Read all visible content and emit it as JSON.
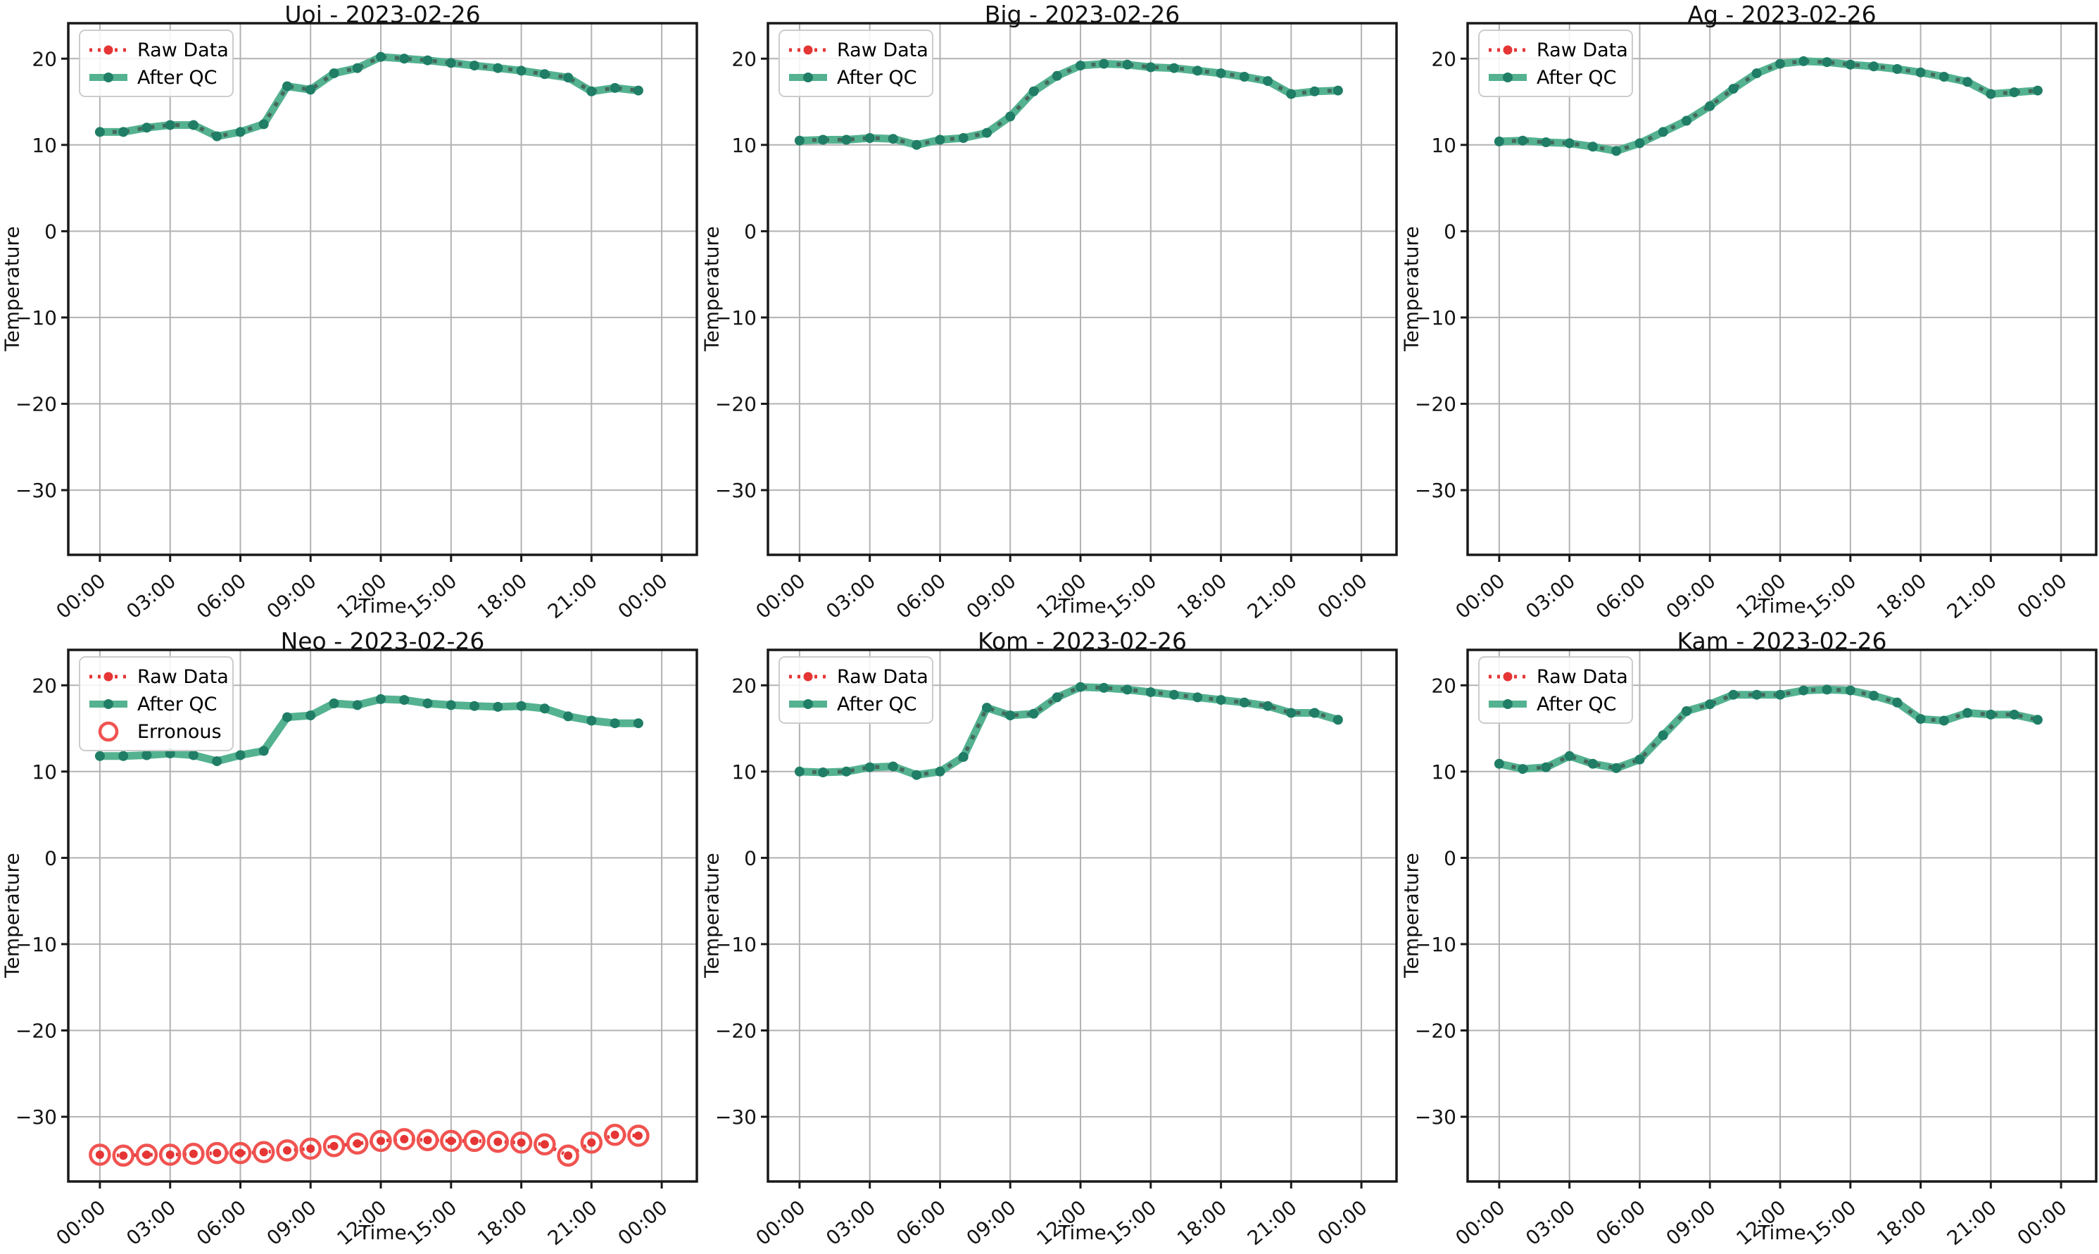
{
  "figure": {
    "date": "2023-02-26",
    "stations": [
      "Uoi",
      "Big",
      "Ag",
      "Neo",
      "Kom",
      "Kam"
    ],
    "legend_labels": {
      "raw": "Raw Data",
      "qc": "After QC",
      "erroneous": "Erronous"
    },
    "colors": {
      "qc_line": "#54b290",
      "qc_marker": "#207d66",
      "qc_dash_overlay": "#45695e",
      "raw": "#e53535",
      "erroneous_circle": "#f05350",
      "grid": "#b2b2b2",
      "spine": "#191919",
      "text": "#151515",
      "legend_border": "#cccccc",
      "background": "#ffffff"
    }
  },
  "chart_data": [
    {
      "type": "line",
      "station": "Uoi",
      "title": "Uoi - 2023-02-26",
      "xlabel": "Time",
      "ylabel": "Temperature",
      "grid": true,
      "legend_position": "upper-left",
      "xlim": [
        -1.35,
        25.5
      ],
      "ylim": [
        -37.5,
        24.1
      ],
      "x_ticks": [
        {
          "hour": 0,
          "label": "00:00"
        },
        {
          "hour": 3,
          "label": "03:00"
        },
        {
          "hour": 6,
          "label": "06:00"
        },
        {
          "hour": 9,
          "label": "09:00"
        },
        {
          "hour": 12,
          "label": "12:00"
        },
        {
          "hour": 15,
          "label": "15:00"
        },
        {
          "hour": 18,
          "label": "18:00"
        },
        {
          "hour": 21,
          "label": "21:00"
        },
        {
          "hour": 24,
          "label": "00:00"
        }
      ],
      "y_ticks": [
        {
          "value": 20,
          "label": "20"
        },
        {
          "value": 10,
          "label": "10"
        },
        {
          "value": 0,
          "label": "0"
        },
        {
          "value": -10,
          "label": "−10"
        },
        {
          "value": -20,
          "label": "−20"
        },
        {
          "value": -30,
          "label": "−30"
        }
      ],
      "legend": [
        {
          "label": "Raw Data",
          "type": "raw"
        },
        {
          "label": "After QC",
          "type": "qc"
        }
      ],
      "overlay_dashes": true,
      "x_hours": [
        0,
        1,
        2,
        3,
        4,
        5,
        6,
        7,
        8,
        9,
        10,
        11,
        12,
        13,
        14,
        15,
        16,
        17,
        18,
        19,
        20,
        21,
        22,
        23
      ],
      "series": [
        {
          "name": "After QC",
          "type": "qc",
          "values": [
            11.5,
            11.5,
            12.0,
            12.3,
            12.3,
            11.0,
            11.5,
            12.4,
            16.8,
            16.4,
            18.3,
            18.9,
            20.2,
            20.0,
            19.8,
            19.5,
            19.2,
            18.9,
            18.6,
            18.2,
            17.8,
            16.2,
            16.6,
            16.3
          ]
        }
      ]
    },
    {
      "type": "line",
      "station": "Big",
      "title": "Big - 2023-02-26",
      "xlabel": "Time",
      "ylabel": "Temperature",
      "grid": true,
      "legend_position": "upper-left",
      "xlim": [
        -1.35,
        25.5
      ],
      "ylim": [
        -37.5,
        24.1
      ],
      "x_ticks": [
        {
          "hour": 0,
          "label": "00:00"
        },
        {
          "hour": 3,
          "label": "03:00"
        },
        {
          "hour": 6,
          "label": "06:00"
        },
        {
          "hour": 9,
          "label": "09:00"
        },
        {
          "hour": 12,
          "label": "12:00"
        },
        {
          "hour": 15,
          "label": "15:00"
        },
        {
          "hour": 18,
          "label": "18:00"
        },
        {
          "hour": 21,
          "label": "21:00"
        },
        {
          "hour": 24,
          "label": "00:00"
        }
      ],
      "y_ticks": [
        {
          "value": 20,
          "label": "20"
        },
        {
          "value": 10,
          "label": "10"
        },
        {
          "value": 0,
          "label": "0"
        },
        {
          "value": -10,
          "label": "−10"
        },
        {
          "value": -20,
          "label": "−20"
        },
        {
          "value": -30,
          "label": "−30"
        }
      ],
      "legend": [
        {
          "label": "Raw Data",
          "type": "raw"
        },
        {
          "label": "After QC",
          "type": "qc"
        }
      ],
      "overlay_dashes": true,
      "x_hours": [
        0,
        1,
        2,
        3,
        4,
        5,
        6,
        7,
        8,
        9,
        10,
        11,
        12,
        13,
        14,
        15,
        16,
        17,
        18,
        19,
        20,
        21,
        22,
        23
      ],
      "series": [
        {
          "name": "After QC",
          "type": "qc",
          "values": [
            10.5,
            10.6,
            10.6,
            10.8,
            10.7,
            10.0,
            10.6,
            10.8,
            11.4,
            13.3,
            16.2,
            18.0,
            19.2,
            19.4,
            19.3,
            19.0,
            18.9,
            18.6,
            18.3,
            17.9,
            17.4,
            15.9,
            16.2,
            16.3
          ]
        }
      ]
    },
    {
      "type": "line",
      "station": "Ag",
      "title": "Ag - 2023-02-26",
      "xlabel": "Time",
      "ylabel": "Temperature",
      "grid": true,
      "legend_position": "upper-left",
      "xlim": [
        -1.35,
        25.5
      ],
      "ylim": [
        -37.5,
        24.1
      ],
      "x_ticks": [
        {
          "hour": 0,
          "label": "00:00"
        },
        {
          "hour": 3,
          "label": "03:00"
        },
        {
          "hour": 6,
          "label": "06:00"
        },
        {
          "hour": 9,
          "label": "09:00"
        },
        {
          "hour": 12,
          "label": "12:00"
        },
        {
          "hour": 15,
          "label": "15:00"
        },
        {
          "hour": 18,
          "label": "18:00"
        },
        {
          "hour": 21,
          "label": "21:00"
        },
        {
          "hour": 24,
          "label": "00:00"
        }
      ],
      "y_ticks": [
        {
          "value": 20,
          "label": "20"
        },
        {
          "value": 10,
          "label": "10"
        },
        {
          "value": 0,
          "label": "0"
        },
        {
          "value": -10,
          "label": "−10"
        },
        {
          "value": -20,
          "label": "−20"
        },
        {
          "value": -30,
          "label": "−30"
        }
      ],
      "legend": [
        {
          "label": "Raw Data",
          "type": "raw"
        },
        {
          "label": "After QC",
          "type": "qc"
        }
      ],
      "overlay_dashes": true,
      "x_hours": [
        0,
        1,
        2,
        3,
        4,
        5,
        6,
        7,
        8,
        9,
        10,
        11,
        12,
        13,
        14,
        15,
        16,
        17,
        18,
        19,
        20,
        21,
        22,
        23
      ],
      "series": [
        {
          "name": "After QC",
          "type": "qc",
          "values": [
            10.4,
            10.5,
            10.3,
            10.2,
            9.8,
            9.3,
            10.2,
            11.5,
            12.8,
            14.5,
            16.5,
            18.3,
            19.4,
            19.7,
            19.6,
            19.3,
            19.1,
            18.8,
            18.4,
            17.9,
            17.3,
            15.9,
            16.1,
            16.3
          ]
        }
      ]
    },
    {
      "type": "line",
      "station": "Neo",
      "title": "Neo - 2023-02-26",
      "xlabel": "Time",
      "ylabel": "Temperature",
      "grid": true,
      "legend_position": "upper-left",
      "xlim": [
        -1.35,
        25.5
      ],
      "ylim": [
        -37.5,
        24.1
      ],
      "x_ticks": [
        {
          "hour": 0,
          "label": "00:00"
        },
        {
          "hour": 3,
          "label": "03:00"
        },
        {
          "hour": 6,
          "label": "06:00"
        },
        {
          "hour": 9,
          "label": "09:00"
        },
        {
          "hour": 12,
          "label": "12:00"
        },
        {
          "hour": 15,
          "label": "15:00"
        },
        {
          "hour": 18,
          "label": "18:00"
        },
        {
          "hour": 21,
          "label": "21:00"
        },
        {
          "hour": 24,
          "label": "00:00"
        }
      ],
      "y_ticks": [
        {
          "value": 20,
          "label": "20"
        },
        {
          "value": 10,
          "label": "10"
        },
        {
          "value": 0,
          "label": "0"
        },
        {
          "value": -10,
          "label": "−10"
        },
        {
          "value": -20,
          "label": "−20"
        },
        {
          "value": -30,
          "label": "−30"
        }
      ],
      "legend": [
        {
          "label": "Raw Data",
          "type": "raw"
        },
        {
          "label": "After QC",
          "type": "qc"
        },
        {
          "label": "Erronous",
          "type": "erroneous"
        }
      ],
      "overlay_dashes": false,
      "x_hours": [
        0,
        1,
        2,
        3,
        4,
        5,
        6,
        7,
        8,
        9,
        10,
        11,
        12,
        13,
        14,
        15,
        16,
        17,
        18,
        19,
        20,
        21,
        22,
        23
      ],
      "series": [
        {
          "name": "Raw Data",
          "type": "raw",
          "erroneous": true,
          "values": [
            -34.4,
            -34.5,
            -34.4,
            -34.4,
            -34.3,
            -34.2,
            -34.2,
            -34.1,
            -33.9,
            -33.7,
            -33.4,
            -33.1,
            -32.8,
            -32.6,
            -32.7,
            -32.8,
            -32.8,
            -32.9,
            -33.0,
            -33.2,
            -34.5,
            -33.0,
            -32.1,
            -32.2
          ]
        },
        {
          "name": "After QC",
          "type": "qc",
          "values": [
            11.8,
            11.8,
            11.9,
            12.1,
            11.9,
            11.2,
            11.9,
            12.4,
            16.3,
            16.5,
            17.9,
            17.7,
            18.4,
            18.3,
            17.9,
            17.7,
            17.6,
            17.5,
            17.6,
            17.3,
            16.4,
            15.9,
            15.6,
            15.6
          ]
        }
      ]
    },
    {
      "type": "line",
      "station": "Kom",
      "title": "Kom - 2023-02-26",
      "xlabel": "Time",
      "ylabel": "Temperature",
      "grid": true,
      "legend_position": "upper-left",
      "xlim": [
        -1.35,
        25.5
      ],
      "ylim": [
        -37.5,
        24.1
      ],
      "x_ticks": [
        {
          "hour": 0,
          "label": "00:00"
        },
        {
          "hour": 3,
          "label": "03:00"
        },
        {
          "hour": 6,
          "label": "06:00"
        },
        {
          "hour": 9,
          "label": "09:00"
        },
        {
          "hour": 12,
          "label": "12:00"
        },
        {
          "hour": 15,
          "label": "15:00"
        },
        {
          "hour": 18,
          "label": "18:00"
        },
        {
          "hour": 21,
          "label": "21:00"
        },
        {
          "hour": 24,
          "label": "00:00"
        }
      ],
      "y_ticks": [
        {
          "value": 20,
          "label": "20"
        },
        {
          "value": 10,
          "label": "10"
        },
        {
          "value": 0,
          "label": "0"
        },
        {
          "value": -10,
          "label": "−10"
        },
        {
          "value": -20,
          "label": "−20"
        },
        {
          "value": -30,
          "label": "−30"
        }
      ],
      "legend": [
        {
          "label": "Raw Data",
          "type": "raw"
        },
        {
          "label": "After QC",
          "type": "qc"
        }
      ],
      "overlay_dashes": true,
      "x_hours": [
        0,
        1,
        2,
        3,
        4,
        5,
        6,
        7,
        8,
        9,
        10,
        11,
        12,
        13,
        14,
        15,
        16,
        17,
        18,
        19,
        20,
        21,
        22,
        23
      ],
      "series": [
        {
          "name": "After QC",
          "type": "qc",
          "values": [
            10.0,
            9.9,
            10.0,
            10.5,
            10.6,
            9.6,
            10.0,
            11.7,
            17.4,
            16.5,
            16.7,
            18.6,
            19.8,
            19.7,
            19.5,
            19.2,
            18.9,
            18.6,
            18.3,
            18.0,
            17.6,
            16.8,
            16.8,
            16.0
          ]
        }
      ]
    },
    {
      "type": "line",
      "station": "Kam",
      "title": "Kam - 2023-02-26",
      "xlabel": "Time",
      "ylabel": "Temperature",
      "grid": true,
      "legend_position": "upper-left",
      "xlim": [
        -1.35,
        25.5
      ],
      "ylim": [
        -37.5,
        24.1
      ],
      "x_ticks": [
        {
          "hour": 0,
          "label": "00:00"
        },
        {
          "hour": 3,
          "label": "03:00"
        },
        {
          "hour": 6,
          "label": "06:00"
        },
        {
          "hour": 9,
          "label": "09:00"
        },
        {
          "hour": 12,
          "label": "12:00"
        },
        {
          "hour": 15,
          "label": "15:00"
        },
        {
          "hour": 18,
          "label": "18:00"
        },
        {
          "hour": 21,
          "label": "21:00"
        },
        {
          "hour": 24,
          "label": "00:00"
        }
      ],
      "y_ticks": [
        {
          "value": 20,
          "label": "20"
        },
        {
          "value": 10,
          "label": "10"
        },
        {
          "value": 0,
          "label": "0"
        },
        {
          "value": -10,
          "label": "−10"
        },
        {
          "value": -20,
          "label": "−20"
        },
        {
          "value": -30,
          "label": "−30"
        }
      ],
      "legend": [
        {
          "label": "Raw Data",
          "type": "raw"
        },
        {
          "label": "After QC",
          "type": "qc"
        }
      ],
      "overlay_dashes": true,
      "x_hours": [
        0,
        1,
        2,
        3,
        4,
        5,
        6,
        7,
        8,
        9,
        10,
        11,
        12,
        13,
        14,
        15,
        16,
        17,
        18,
        19,
        20,
        21,
        22,
        23
      ],
      "series": [
        {
          "name": "After QC",
          "type": "qc",
          "values": [
            10.9,
            10.3,
            10.5,
            11.8,
            10.9,
            10.4,
            11.4,
            14.2,
            17.0,
            17.8,
            18.9,
            18.9,
            18.9,
            19.4,
            19.5,
            19.4,
            18.8,
            18.0,
            16.1,
            15.9,
            16.8,
            16.6,
            16.6,
            16.0
          ]
        }
      ]
    }
  ]
}
